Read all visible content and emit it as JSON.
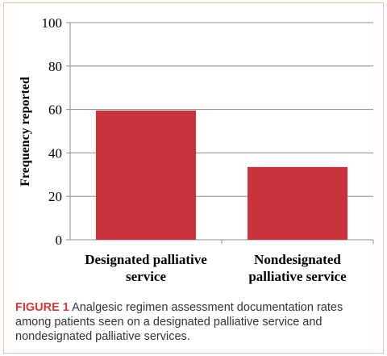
{
  "chart_data": {
    "type": "bar",
    "categories": [
      [
        "Designated palliative",
        "service"
      ],
      [
        "Nondesignated",
        "palliative service"
      ]
    ],
    "values": [
      59.5,
      33.5
    ],
    "ylabel": "Frequency reported",
    "ylim": [
      0,
      100
    ],
    "yticks": [
      0,
      20,
      40,
      60,
      80,
      100
    ],
    "grid": true,
    "legend": "none",
    "bar_color": "#c9333b"
  },
  "caption": {
    "label": "FIGURE 1",
    "text": " Analgesic regimen assessment documentation rates among patients seen on a designated palliative service and nondesignated palliative services."
  },
  "colors": {
    "frame_border": "#e8c2a8",
    "caption_label": "#d03a3a",
    "caption_text": "#333333"
  }
}
